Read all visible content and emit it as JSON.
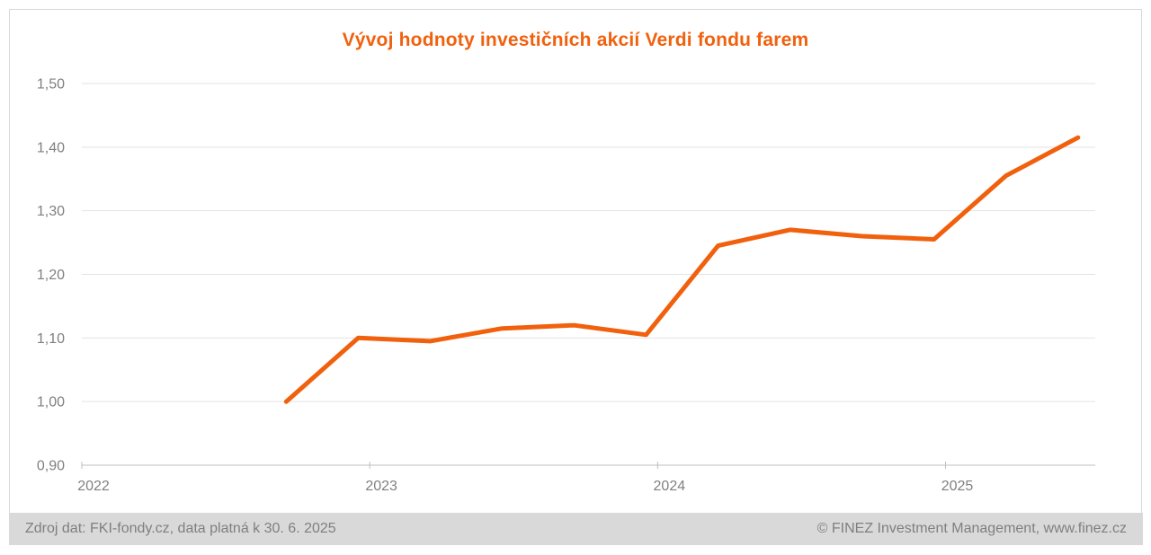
{
  "title": "Vývoj hodnoty investičních akcií Verdi fondu farem",
  "footer": {
    "source": "Zdroj dat: FKI-fondy.cz, data platná k 30. 6. 2025",
    "copyright": "© FINEZ Investment Management, www.finez.cz"
  },
  "colors": {
    "accent_orange": "#F1600D",
    "axis_text": "#808080",
    "gridline": "#E3E3E3",
    "axis_line": "#BFBFBF",
    "footer_bg": "#D9D9D9",
    "footer_text": "#7F7F7F",
    "frame_border": "#D9D9D9"
  },
  "chart_data": {
    "type": "line",
    "title": "Vývoj hodnoty investičních akcií Verdi fondu farem",
    "x": [
      2022.71,
      2022.96,
      2023.21,
      2023.46,
      2023.71,
      2023.96,
      2024.21,
      2024.46,
      2024.71,
      2024.96,
      2025.21,
      2025.46
    ],
    "values": [
      1.0,
      1.1,
      1.095,
      1.115,
      1.12,
      1.105,
      1.245,
      1.27,
      1.26,
      1.255,
      1.355,
      1.415
    ],
    "line_color": "#F1600D",
    "line_width": 5,
    "xticks": [
      2022,
      2023,
      2024,
      2025
    ],
    "xtick_labels": [
      "2022",
      "2023",
      "2024",
      "2025"
    ],
    "ytick_values": [
      1.5,
      1.4,
      1.3,
      1.2,
      1.1,
      1.0,
      0.9
    ],
    "ytick_labels": [
      "1,50",
      "1,40",
      "1,30",
      "1,20",
      "1,10",
      "1,00",
      "0,90"
    ],
    "xlim": [
      2022.0,
      2025.52
    ],
    "ylim": [
      0.9,
      1.5
    ],
    "grid": "horizontal",
    "legend": "none",
    "xlabel": "",
    "ylabel": ""
  }
}
